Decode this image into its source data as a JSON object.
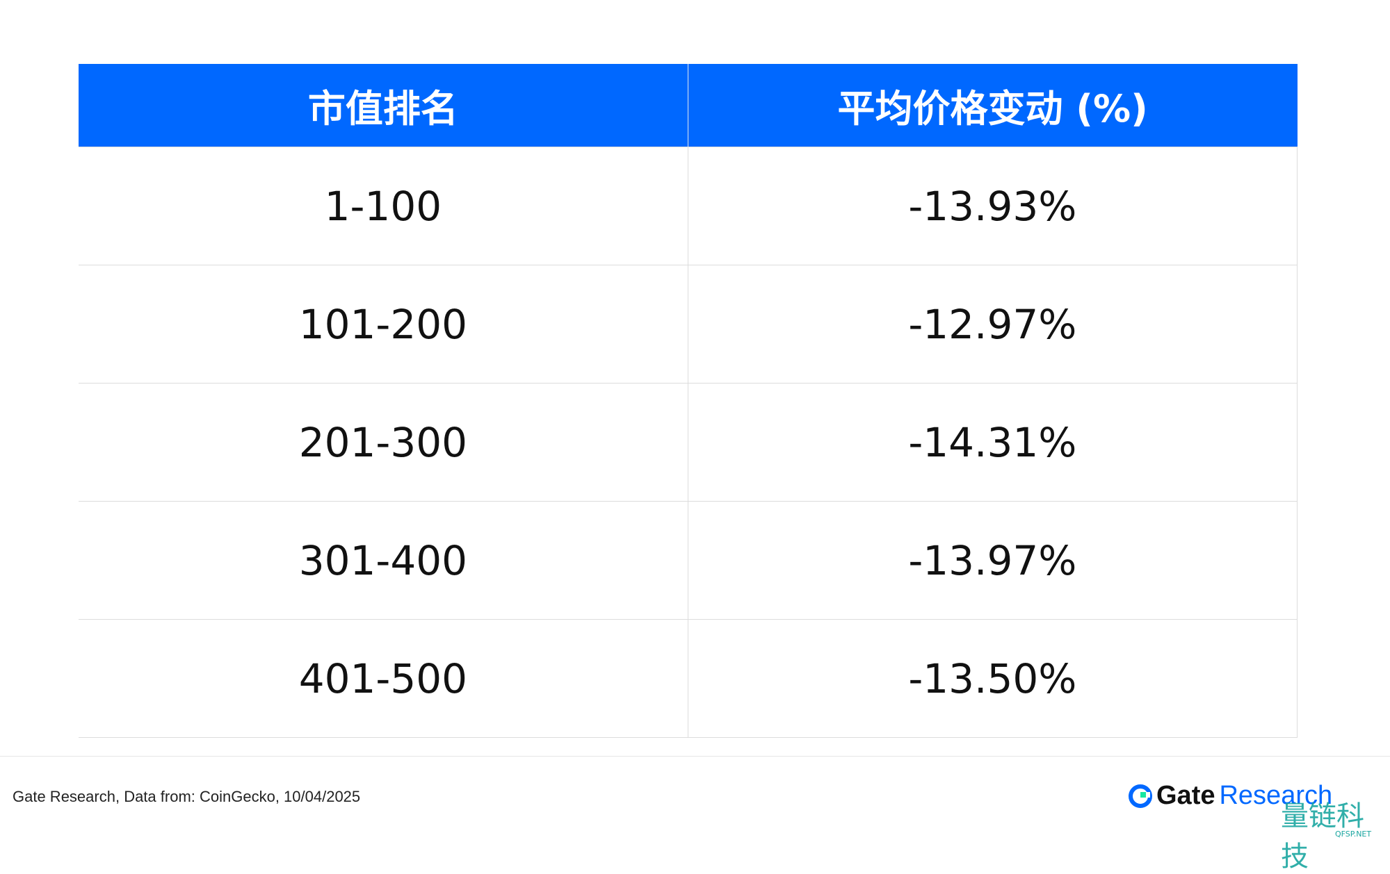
{
  "table": {
    "header": [
      "市值排名",
      "平均价格变动 (%)"
    ],
    "rows": [
      [
        "1-100",
        "-13.93%"
      ],
      [
        "101-200",
        "-12.97%"
      ],
      [
        "201-300",
        "-14.31%"
      ],
      [
        "301-400",
        "-13.97%"
      ],
      [
        "401-500",
        "-13.50%"
      ]
    ]
  },
  "footer": {
    "source": "Gate Research, Data from: CoinGecko, 10/04/2025",
    "logo": [
      "Gate",
      "Research"
    ]
  },
  "watermark": {
    "name": "量链科技",
    "site": "QFSP.NET"
  }
}
